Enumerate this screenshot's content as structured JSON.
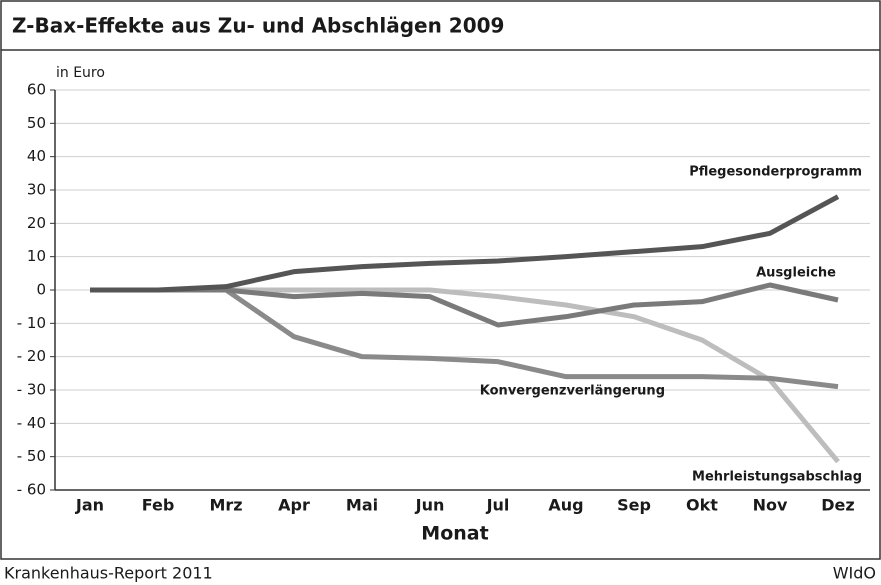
{
  "chart_data": {
    "type": "line",
    "title": "Z-Bax-Effekte aus Zu- und Abschlägen 2009",
    "y_label": "in Euro",
    "x_label": "Monat",
    "source": "Krankenhaus-Report 2011",
    "publisher": "WIdO",
    "categories": [
      "Jan",
      "Feb",
      "Mrz",
      "Apr",
      "Mai",
      "Jun",
      "Jul",
      "Aug",
      "Sep",
      "Okt",
      "Nov",
      "Dez"
    ],
    "series": [
      {
        "name": "Pflegesonderprogramm",
        "color": "#555555",
        "values": [
          0,
          0,
          1,
          5.5,
          7,
          8,
          8.7,
          10,
          11.5,
          13,
          17,
          28
        ]
      },
      {
        "name": "Konvergenzverlängerung",
        "color": "#8a8a8a",
        "values": [
          0,
          0,
          0,
          -14,
          -20,
          -20.5,
          -21.5,
          -26,
          -26,
          -26,
          -26.5,
          -29
        ]
      },
      {
        "name": "Ausgleiche",
        "color": "#7a7a7a",
        "values": [
          0,
          0,
          0,
          -2,
          -1,
          -2,
          -10.5,
          -8,
          -4.5,
          -3.5,
          1.5,
          -3
        ]
      },
      {
        "name": "Mehrleistungsabschlag",
        "color": "#bdbdbd",
        "values": [
          0,
          0,
          0,
          0,
          0,
          0,
          -2,
          -4.5,
          -8,
          -15,
          -27,
          -51.5
        ]
      }
    ],
    "ylim": [
      -60,
      60
    ],
    "yticks": [
      60,
      50,
      40,
      30,
      20,
      10,
      0,
      {
        "value": -10,
        "label": "- 10"
      },
      {
        "value": -20,
        "label": "- 20"
      },
      {
        "value": -30,
        "label": "- 30"
      },
      {
        "value": -40,
        "label": "- 40"
      },
      {
        "value": -50,
        "label": "- 50"
      },
      {
        "value": -60,
        "label": "- 60"
      }
    ],
    "grid": true
  }
}
